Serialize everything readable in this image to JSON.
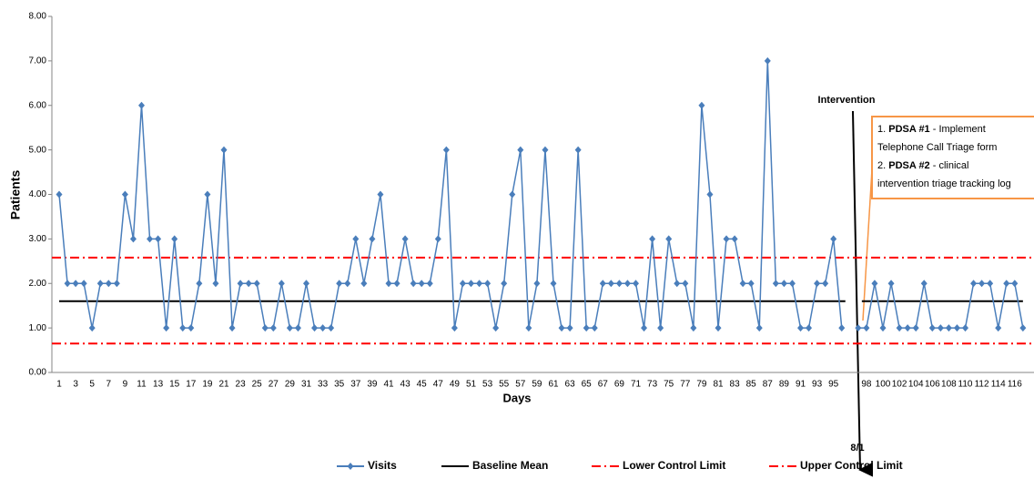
{
  "chart_data": {
    "type": "line",
    "y_label": "Patients",
    "x_label": "Days",
    "categories": [
      1,
      null,
      3,
      null,
      5,
      null,
      7,
      null,
      9,
      null,
      11,
      null,
      13,
      null,
      15,
      null,
      17,
      null,
      19,
      null,
      21,
      null,
      23,
      null,
      25,
      null,
      27,
      null,
      29,
      null,
      31,
      null,
      33,
      null,
      35,
      null,
      37,
      null,
      39,
      null,
      41,
      null,
      43,
      null,
      45,
      null,
      47,
      null,
      49,
      null,
      51,
      null,
      53,
      null,
      55,
      null,
      57,
      null,
      59,
      null,
      61,
      null,
      63,
      null,
      65,
      null,
      67,
      null,
      69,
      null,
      71,
      null,
      73,
      null,
      75,
      null,
      77,
      null,
      79,
      null,
      81,
      null,
      83,
      null,
      85,
      null,
      87,
      null,
      89,
      null,
      91,
      null,
      93,
      null,
      95,
      null,
      null,
      null,
      98,
      null,
      100,
      null,
      102,
      null,
      104,
      null,
      106,
      null,
      108,
      null,
      110,
      null,
      112,
      null,
      114,
      null,
      116,
      null
    ],
    "series": [
      {
        "name": "Visits",
        "color": "#4a7ebb",
        "values": [
          4,
          2,
          2,
          2,
          1,
          2,
          2,
          2,
          4,
          3,
          6,
          3,
          3,
          1,
          3,
          1,
          1,
          2,
          4,
          2,
          5,
          1,
          2,
          2,
          2,
          1,
          1,
          2,
          1,
          1,
          2,
          1,
          1,
          1,
          2,
          2,
          3,
          2,
          3,
          4,
          2,
          2,
          3,
          2,
          2,
          2,
          3,
          5,
          1,
          2,
          2,
          2,
          2,
          1,
          2,
          4,
          5,
          1,
          2,
          5,
          2,
          1,
          1,
          5,
          1,
          1,
          2,
          2,
          2,
          2,
          2,
          1,
          3,
          1,
          3,
          2,
          2,
          1,
          6,
          4,
          1,
          3,
          3,
          2,
          2,
          1,
          7,
          2,
          2,
          2,
          1,
          1,
          2,
          2,
          3,
          1,
          null,
          1,
          1,
          2,
          1,
          2,
          1,
          1,
          1,
          2,
          1,
          1,
          1,
          1,
          1,
          2,
          2,
          2,
          1,
          2,
          2,
          1
        ]
      }
    ],
    "reference_lines": [
      {
        "name": "Baseline Mean",
        "value": 1.6,
        "color": "#000000",
        "dash": "solid"
      },
      {
        "name": "Lower Control Limit",
        "value": 0.65,
        "color": "#ff0000",
        "dash": "dashdot"
      },
      {
        "name": "Upper Control Limit",
        "value": 2.58,
        "color": "#ff0000",
        "dash": "dashdot"
      }
    ],
    "ylim": [
      0,
      8
    ],
    "yticks": [
      {
        "value": 0,
        "label": "0.00"
      },
      {
        "value": 1,
        "label": "1.00"
      },
      {
        "value": 2,
        "label": "2.00"
      },
      {
        "value": 3,
        "label": "3.00"
      },
      {
        "value": 4,
        "label": "4.00"
      },
      {
        "value": 5,
        "label": "5.00"
      },
      {
        "value": 6,
        "label": "6.00"
      },
      {
        "value": 7,
        "label": "7.00"
      },
      {
        "value": 8,
        "label": "8.00"
      }
    ],
    "annotations": {
      "intervention": "Intervention",
      "date": "8/1",
      "note": [
        [
          "1. ",
          "PDSA #1",
          " - Implement"
        ],
        [
          "Telephone Call Triage form"
        ],
        [
          "2. ",
          "PDSA #2",
          " - clinical"
        ],
        [
          "intervention triage tracking log"
        ]
      ]
    },
    "legend": "bottom"
  }
}
